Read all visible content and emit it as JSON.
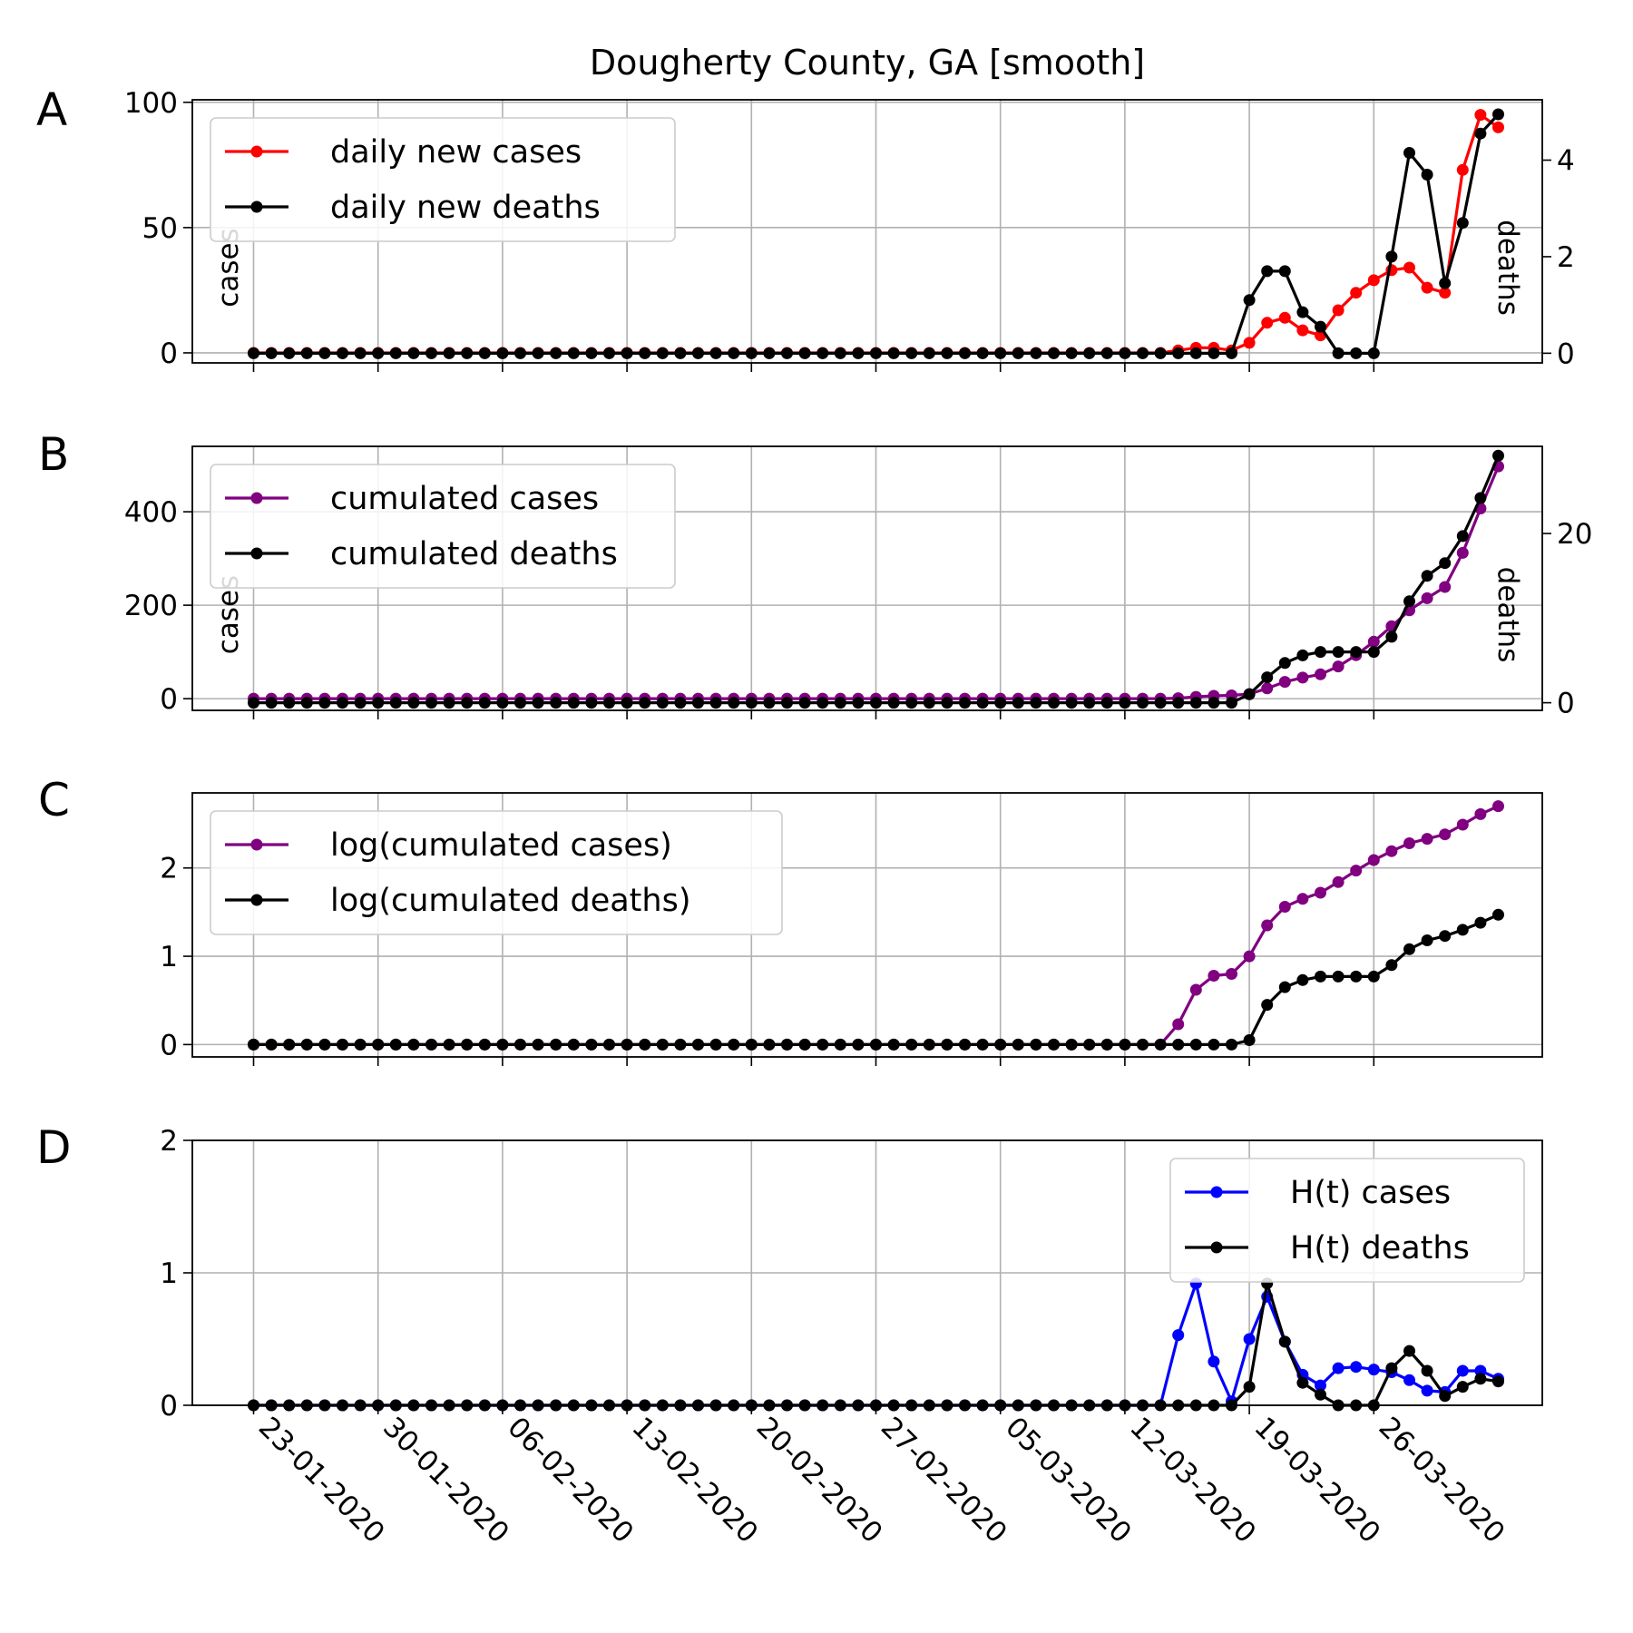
{
  "title": "Dougherty County, GA [smooth]",
  "colors": {
    "cases": "#ff0000",
    "deaths": "#000000",
    "cumulated": "#800080",
    "h_cases": "#0000ff",
    "grid": "#b0b0b0"
  },
  "x_tick_labels": [
    "23-01-2020",
    "30-01-2020",
    "06-02-2020",
    "13-02-2020",
    "20-02-2020",
    "27-02-2020",
    "05-03-2020",
    "12-03-2020",
    "19-03-2020",
    "26-03-2020"
  ],
  "chart_data": [
    {
      "panel": "A",
      "type": "line",
      "ylabel": "cases",
      "y2label": "deaths",
      "ylim": [
        -4,
        101
      ],
      "y2lim": [
        -0.2,
        5.25
      ],
      "yticks": [
        0,
        50,
        100
      ],
      "y2ticks": [
        0,
        2,
        4
      ],
      "legend_position": "upper-left",
      "series": [
        {
          "name": "daily new cases",
          "axis": "left",
          "color": "#ff0000",
          "start_day": 0,
          "values": [
            0,
            0,
            0,
            0,
            0,
            0,
            0,
            0,
            0,
            0,
            0,
            0,
            0,
            0,
            0,
            0,
            0,
            0,
            0,
            0,
            0,
            0,
            0,
            0,
            0,
            0,
            0,
            0,
            0,
            0,
            0,
            0,
            0,
            0,
            0,
            0,
            0,
            0,
            0,
            0,
            0,
            0,
            0,
            0,
            0,
            0,
            0,
            0,
            0,
            0,
            0,
            0,
            1,
            2,
            2,
            1,
            4,
            12,
            14,
            9,
            7,
            17,
            24,
            29,
            33,
            34,
            26,
            24,
            73,
            95,
            90
          ]
        },
        {
          "name": "daily new deaths",
          "axis": "right",
          "color": "#000000",
          "start_day": 0,
          "values": [
            0,
            0,
            0,
            0,
            0,
            0,
            0,
            0,
            0,
            0,
            0,
            0,
            0,
            0,
            0,
            0,
            0,
            0,
            0,
            0,
            0,
            0,
            0,
            0,
            0,
            0,
            0,
            0,
            0,
            0,
            0,
            0,
            0,
            0,
            0,
            0,
            0,
            0,
            0,
            0,
            0,
            0,
            0,
            0,
            0,
            0,
            0,
            0,
            0,
            0,
            0,
            0,
            0,
            0,
            0,
            0,
            1.1,
            1.7,
            1.7,
            0.85,
            0.55,
            0,
            0,
            0,
            2.0,
            4.15,
            3.7,
            1.45,
            2.7,
            4.55,
            4.95
          ]
        }
      ]
    },
    {
      "panel": "B",
      "type": "line",
      "ylabel": "cases",
      "y2label": "deaths",
      "ylim": [
        -25,
        540
      ],
      "y2lim": [
        -0.9,
        30.3
      ],
      "yticks": [
        0,
        200,
        400
      ],
      "y2ticks": [
        0,
        20
      ],
      "legend_position": "upper-left",
      "series": [
        {
          "name": "cumulated cases",
          "axis": "left",
          "color": "#800080",
          "start_day": 0,
          "values": [
            0,
            0,
            0,
            0,
            0,
            0,
            0,
            0,
            0,
            0,
            0,
            0,
            0,
            0,
            0,
            0,
            0,
            0,
            0,
            0,
            0,
            0,
            0,
            0,
            0,
            0,
            0,
            0,
            0,
            0,
            0,
            0,
            0,
            0,
            0,
            0,
            0,
            0,
            0,
            0,
            0,
            0,
            0,
            0,
            0,
            0,
            0,
            0,
            0,
            0,
            0,
            0,
            1,
            4,
            6,
            7,
            10,
            22,
            36,
            45,
            52,
            69,
            93,
            122,
            155,
            189,
            215,
            239,
            312,
            407,
            497
          ]
        },
        {
          "name": "cumulated deaths",
          "axis": "right",
          "color": "#000000",
          "start_day": 0,
          "values": [
            0,
            0,
            0,
            0,
            0,
            0,
            0,
            0,
            0,
            0,
            0,
            0,
            0,
            0,
            0,
            0,
            0,
            0,
            0,
            0,
            0,
            0,
            0,
            0,
            0,
            0,
            0,
            0,
            0,
            0,
            0,
            0,
            0,
            0,
            0,
            0,
            0,
            0,
            0,
            0,
            0,
            0,
            0,
            0,
            0,
            0,
            0,
            0,
            0,
            0,
            0,
            0,
            0,
            0,
            0,
            0,
            1,
            3,
            4.7,
            5.6,
            6,
            6,
            6,
            6,
            7.8,
            12,
            15,
            16.5,
            19.7,
            24.2,
            29.2
          ]
        }
      ]
    },
    {
      "panel": "C",
      "type": "line",
      "ylim": [
        -0.14,
        2.85
      ],
      "yticks": [
        0,
        1,
        2
      ],
      "legend_position": "upper-left",
      "series": [
        {
          "name": "log(cumulated cases)",
          "color": "#800080",
          "start_day": 0,
          "values": [
            0,
            0,
            0,
            0,
            0,
            0,
            0,
            0,
            0,
            0,
            0,
            0,
            0,
            0,
            0,
            0,
            0,
            0,
            0,
            0,
            0,
            0,
            0,
            0,
            0,
            0,
            0,
            0,
            0,
            0,
            0,
            0,
            0,
            0,
            0,
            0,
            0,
            0,
            0,
            0,
            0,
            0,
            0,
            0,
            0,
            0,
            0,
            0,
            0,
            0,
            0,
            0,
            0.23,
            0.62,
            0.78,
            0.8,
            1.0,
            1.35,
            1.56,
            1.65,
            1.72,
            1.84,
            1.97,
            2.09,
            2.19,
            2.28,
            2.33,
            2.38,
            2.49,
            2.61,
            2.7
          ]
        },
        {
          "name": "log(cumulated deaths)",
          "color": "#000000",
          "start_day": 0,
          "values": [
            0,
            0,
            0,
            0,
            0,
            0,
            0,
            0,
            0,
            0,
            0,
            0,
            0,
            0,
            0,
            0,
            0,
            0,
            0,
            0,
            0,
            0,
            0,
            0,
            0,
            0,
            0,
            0,
            0,
            0,
            0,
            0,
            0,
            0,
            0,
            0,
            0,
            0,
            0,
            0,
            0,
            0,
            0,
            0,
            0,
            0,
            0,
            0,
            0,
            0,
            0,
            0,
            0,
            0,
            0,
            0,
            0.05,
            0.45,
            0.65,
            0.73,
            0.77,
            0.77,
            0.77,
            0.77,
            0.9,
            1.08,
            1.18,
            1.23,
            1.3,
            1.38,
            1.47
          ]
        }
      ]
    },
    {
      "panel": "D",
      "type": "line",
      "ylim": [
        0,
        2
      ],
      "yticks": [
        0,
        1,
        2
      ],
      "legend_position": "upper-right",
      "series": [
        {
          "name": "H(t) cases",
          "color": "#0000ff",
          "start_day": 0,
          "values": [
            0,
            0,
            0,
            0,
            0,
            0,
            0,
            0,
            0,
            0,
            0,
            0,
            0,
            0,
            0,
            0,
            0,
            0,
            0,
            0,
            0,
            0,
            0,
            0,
            0,
            0,
            0,
            0,
            0,
            0,
            0,
            0,
            0,
            0,
            0,
            0,
            0,
            0,
            0,
            0,
            0,
            0,
            0,
            0,
            0,
            0,
            0,
            0,
            0,
            0,
            0,
            0,
            0.53,
            0.92,
            0.33,
            0.03,
            0.5,
            0.82,
            0.48,
            0.23,
            0.15,
            0.28,
            0.29,
            0.27,
            0.25,
            0.19,
            0.11,
            0.1,
            0.26,
            0.26,
            0.2
          ]
        },
        {
          "name": "H(t) deaths",
          "color": "#000000",
          "start_day": 0,
          "values": [
            0,
            0,
            0,
            0,
            0,
            0,
            0,
            0,
            0,
            0,
            0,
            0,
            0,
            0,
            0,
            0,
            0,
            0,
            0,
            0,
            0,
            0,
            0,
            0,
            0,
            0,
            0,
            0,
            0,
            0,
            0,
            0,
            0,
            0,
            0,
            0,
            0,
            0,
            0,
            0,
            0,
            0,
            0,
            0,
            0,
            0,
            0,
            0,
            0,
            0,
            0,
            0,
            0,
            0,
            0,
            0,
            0.14,
            0.92,
            0.48,
            0.17,
            0.08,
            0,
            0,
            0,
            0.28,
            0.41,
            0.26,
            0.07,
            0.14,
            0.2,
            0.18
          ]
        }
      ]
    }
  ]
}
